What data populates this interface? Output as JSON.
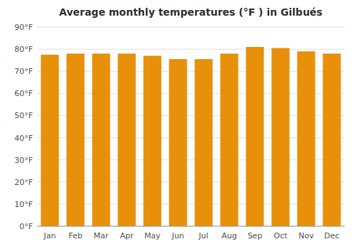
{
  "chart_data": {
    "type": "bar",
    "title": "Average monthly temperatures (°F ) in Gilbués",
    "categories": [
      "Jan",
      "Feb",
      "Mar",
      "Apr",
      "May",
      "Jun",
      "Jul",
      "Aug",
      "Sep",
      "Oct",
      "Nov",
      "Dec"
    ],
    "values": [
      77.5,
      78.0,
      78.0,
      78.0,
      77.0,
      75.5,
      75.5,
      78.0,
      81.0,
      80.5,
      79.0,
      78.0
    ],
    "color": "#E8900A",
    "ylim": [
      0,
      90
    ],
    "yticks": [
      {
        "value": 0,
        "label": "0°F"
      },
      {
        "value": 10,
        "label": "10°F"
      },
      {
        "value": 20,
        "label": "20°F"
      },
      {
        "value": 30,
        "label": "30°F"
      },
      {
        "value": 40,
        "label": "40°F"
      },
      {
        "value": 50,
        "label": "50°F"
      },
      {
        "value": 60,
        "label": "60°F"
      },
      {
        "value": 70,
        "label": "70°F"
      },
      {
        "value": 80,
        "label": "80°F"
      },
      {
        "value": 90,
        "label": "90°F"
      }
    ],
    "grid": true
  }
}
